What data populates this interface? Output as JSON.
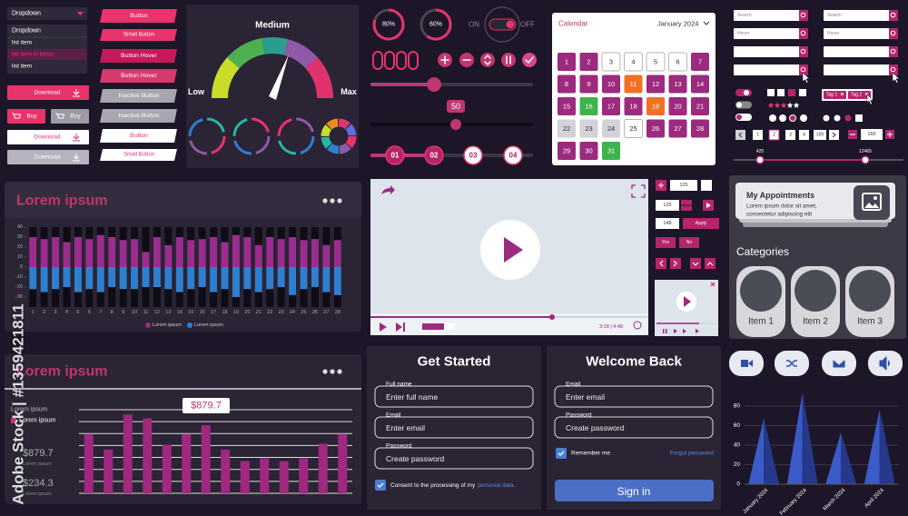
{
  "watermark": "Adobe Stock | #1359421811",
  "dropdown": {
    "closed": "Dropdown",
    "open": "Dropdown",
    "items": [
      "list item",
      "list item in focus",
      "list item"
    ]
  },
  "buttons_left": [
    "Download",
    "Buy",
    "Buy",
    "Download",
    "Download"
  ],
  "buttons_right": [
    "Button",
    "Small Button",
    "Button Hover",
    "Button Hover",
    "Inactive Button",
    "Inactive Button",
    "Button",
    "Small Button"
  ],
  "gauge": {
    "label": "Medium",
    "low": "Low",
    "high": "Max"
  },
  "rings": [
    {
      "value": 80,
      "label": "80%"
    },
    {
      "value": 60,
      "label": "60%"
    }
  ],
  "toggle": [
    "ON",
    "OFF"
  ],
  "slider_value": "50",
  "steps": [
    "01",
    "02",
    "03",
    "04"
  ],
  "calendar": {
    "title": "Calendar",
    "month": "January 2024",
    "days": [
      "1",
      "2",
      "3",
      "4",
      "5",
      "6",
      "7",
      "8",
      "9",
      "10",
      "11",
      "12",
      "13",
      "14",
      "15",
      "16",
      "17",
      "18",
      "19",
      "20",
      "21",
      "22",
      "23",
      "24",
      "25",
      "26",
      "27",
      "28",
      "29",
      "30",
      "31"
    ]
  },
  "search": [
    "Search",
    "Hover",
    "Search",
    "Hover"
  ],
  "tags": [
    "Tag 1",
    "Tag 2"
  ],
  "pagination": [
    "1",
    "2",
    "3",
    "4",
    "109"
  ],
  "stepper": "160",
  "range": [
    "425",
    "12465"
  ],
  "panel1": {
    "title": "Lorem ipsum",
    "chart": {
      "type": "bar",
      "categories": [
        "1",
        "2",
        "3",
        "4",
        "5",
        "6",
        "7",
        "8",
        "9",
        "10",
        "11",
        "12",
        "13",
        "14",
        "15",
        "16",
        "17",
        "18",
        "19",
        "20",
        "21",
        "22",
        "23",
        "24",
        "25",
        "26",
        "27",
        "28"
      ],
      "series": [
        {
          "name": "Lorem ipsum",
          "color": "#9b2d8f",
          "values": [
            30,
            28,
            30,
            25,
            30,
            28,
            32,
            30,
            27,
            28,
            15,
            30,
            22,
            30,
            27,
            28,
            30,
            25,
            32,
            30,
            22,
            30,
            28,
            30,
            27,
            28,
            22,
            27
          ]
        },
        {
          "name": "Lorem ipsum",
          "color": "#2f7fd0",
          "values": [
            -22,
            -25,
            -22,
            -20,
            -25,
            -22,
            -25,
            -20,
            -22,
            -22,
            -20,
            -20,
            -22,
            -25,
            -22,
            -20,
            -25,
            -22,
            -30,
            -22,
            -25,
            -22,
            -20,
            -28,
            -22,
            -20,
            -25,
            -28
          ]
        }
      ],
      "ylim": [
        -40,
        40
      ],
      "yticks": [
        40,
        30,
        20,
        10,
        0,
        -10,
        -20,
        -30
      ]
    }
  },
  "video": {
    "time": "3:18 | 4:48"
  },
  "number_inputs": [
    "125",
    "125",
    "148"
  ],
  "apply": "Apply",
  "yes": "Yes",
  "no": "No",
  "appointments": {
    "title": "My Appointments",
    "text": [
      "Lorem ipsum dolor sit amet,",
      "consectetur adipiscing elit"
    ]
  },
  "categories": {
    "title": "Categories",
    "items": [
      "Item 1",
      "Item 2",
      "Item 3"
    ]
  },
  "panel2": {
    "title": "Lorem ipsum",
    "legend": [
      "Lorem ipsum",
      "Lorem ipsum"
    ],
    "stats": [
      {
        "value": "$879.7",
        "label": "Lorem ipsum"
      },
      {
        "value": "$234.3",
        "label": "Lorem ipsum"
      }
    ],
    "tooltip": "$879.7",
    "chart": {
      "type": "bar",
      "values": [
        61,
        45,
        81,
        77,
        50,
        61,
        70,
        45,
        33,
        36,
        33,
        36,
        51,
        61
      ],
      "color": "#a0287f",
      "ylim": [
        0,
        100
      ]
    }
  },
  "signup": {
    "title": "Get Started",
    "fields": [
      {
        "label": "Full name",
        "placeholder": "Enter full name"
      },
      {
        "label": "Email",
        "placeholder": "Enter email"
      },
      {
        "label": "Password",
        "placeholder": "Create password"
      }
    ],
    "consent": "Consent to the processing of my",
    "consent_link": "personal data."
  },
  "login": {
    "title": "Welcome Back",
    "fields": [
      {
        "label": "Email",
        "placeholder": "Enter email"
      },
      {
        "label": "Password",
        "placeholder": "Create password"
      }
    ],
    "remember": "Remember me",
    "forgot": "Forgot password",
    "submit": "Sign in"
  },
  "spike_chart": {
    "type": "triangle",
    "categories": [
      "January 2024",
      "February 2024",
      "March 2024",
      "April 2024"
    ],
    "values": [
      68,
      94,
      53,
      77
    ],
    "color": "#3b5bc8",
    "ylim": [
      0,
      100
    ],
    "yticks": [
      0,
      20,
      40,
      60,
      80
    ],
    "grid": true
  }
}
